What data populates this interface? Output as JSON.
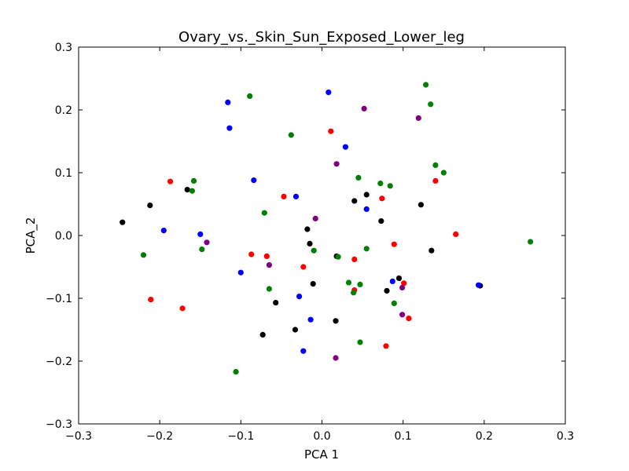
{
  "chart_data": {
    "type": "scatter",
    "title": "Ovary_vs._Skin_Sun_Exposed_Lower_leg",
    "xlabel": "PCA 1",
    "ylabel": "PCA_2",
    "xlim": [
      -0.3,
      0.3
    ],
    "ylim": [
      -0.3,
      0.3
    ],
    "xticks": [
      -0.3,
      -0.2,
      -0.1,
      0.0,
      0.1,
      0.2,
      0.3
    ],
    "yticks": [
      -0.3,
      -0.2,
      -0.1,
      0.0,
      0.1,
      0.2,
      0.3
    ],
    "xtick_labels": [
      "−0.3",
      "−0.2",
      "−0.1",
      "0.0",
      "0.1",
      "0.2",
      "0.3"
    ],
    "ytick_labels": [
      "−0.3",
      "−0.2",
      "−0.1",
      "0.0",
      "0.1",
      "0.2",
      "0.3"
    ],
    "grid": false,
    "series": [
      {
        "color": "#000000",
        "points": [
          [
            -0.246,
            0.021
          ],
          [
            -0.212,
            0.048
          ],
          [
            -0.166,
            0.073
          ],
          [
            -0.018,
            0.01
          ],
          [
            -0.015,
            -0.013
          ],
          [
            0.018,
            -0.033
          ],
          [
            0.04,
            0.055
          ],
          [
            0.055,
            0.065
          ],
          [
            0.073,
            0.023
          ],
          [
            0.122,
            0.049
          ],
          [
            0.135,
            -0.024
          ],
          [
            0.095,
            -0.068
          ],
          [
            0.08,
            -0.088
          ],
          [
            -0.011,
            -0.077
          ],
          [
            -0.057,
            -0.107
          ],
          [
            -0.033,
            -0.15
          ],
          [
            -0.073,
            -0.158
          ],
          [
            0.017,
            -0.136
          ],
          [
            0.195,
            -0.08
          ]
        ]
      },
      {
        "color": "#ff0000",
        "points": [
          [
            -0.187,
            0.086
          ],
          [
            -0.211,
            -0.102
          ],
          [
            -0.172,
            -0.116
          ],
          [
            -0.087,
            -0.03
          ],
          [
            -0.068,
            -0.033
          ],
          [
            -0.047,
            0.062
          ],
          [
            -0.023,
            -0.05
          ],
          [
            0.011,
            0.166
          ],
          [
            0.04,
            -0.038
          ],
          [
            0.04,
            -0.087
          ],
          [
            0.074,
            0.059
          ],
          [
            0.089,
            -0.014
          ],
          [
            0.101,
            -0.076
          ],
          [
            0.107,
            -0.132
          ],
          [
            0.079,
            -0.176
          ],
          [
            0.14,
            0.087
          ],
          [
            0.165,
            0.002
          ]
        ]
      },
      {
        "color": "#0000ff",
        "points": [
          [
            -0.116,
            0.212
          ],
          [
            -0.114,
            0.171
          ],
          [
            -0.084,
            0.088
          ],
          [
            -0.195,
            0.008
          ],
          [
            -0.15,
            0.002
          ],
          [
            -0.1,
            -0.059
          ],
          [
            -0.032,
            0.062
          ],
          [
            -0.028,
            -0.097
          ],
          [
            -0.014,
            -0.134
          ],
          [
            -0.023,
            -0.184
          ],
          [
            0.008,
            0.228
          ],
          [
            0.029,
            0.141
          ],
          [
            0.055,
            0.042
          ],
          [
            0.087,
            -0.073
          ],
          [
            0.193,
            -0.079
          ]
        ]
      },
      {
        "color": "#008000",
        "points": [
          [
            -0.089,
            0.222
          ],
          [
            -0.038,
            0.16
          ],
          [
            -0.158,
            0.087
          ],
          [
            -0.16,
            0.071
          ],
          [
            -0.22,
            -0.031
          ],
          [
            -0.148,
            -0.022
          ],
          [
            -0.071,
            0.036
          ],
          [
            -0.065,
            -0.085
          ],
          [
            -0.01,
            -0.024
          ],
          [
            0.02,
            -0.034
          ],
          [
            0.033,
            -0.075
          ],
          [
            0.039,
            -0.091
          ],
          [
            0.045,
            0.092
          ],
          [
            0.047,
            -0.078
          ],
          [
            0.055,
            -0.021
          ],
          [
            0.072,
            0.083
          ],
          [
            0.084,
            0.079
          ],
          [
            0.089,
            -0.108
          ],
          [
            0.047,
            -0.17
          ],
          [
            -0.106,
            -0.217
          ],
          [
            0.128,
            0.24
          ],
          [
            0.134,
            0.209
          ],
          [
            0.14,
            0.112
          ],
          [
            0.15,
            0.1
          ],
          [
            0.257,
            -0.01
          ]
        ]
      },
      {
        "color": "#800080",
        "points": [
          [
            0.052,
            0.202
          ],
          [
            0.119,
            0.187
          ],
          [
            0.018,
            0.114
          ],
          [
            -0.008,
            0.027
          ],
          [
            -0.142,
            -0.011
          ],
          [
            -0.065,
            -0.047
          ],
          [
            0.099,
            -0.083
          ],
          [
            0.099,
            -0.126
          ],
          [
            0.017,
            -0.195
          ]
        ]
      }
    ]
  }
}
